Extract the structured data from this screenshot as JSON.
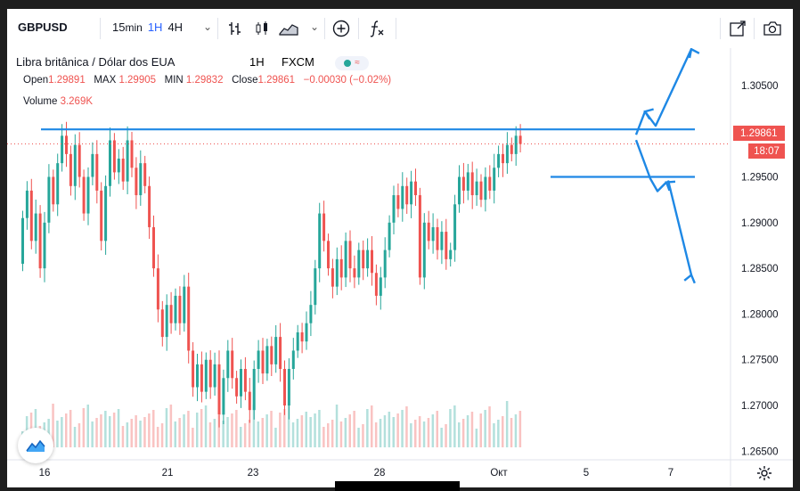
{
  "toolbar": {
    "symbol": "GBPUSD",
    "interval_main": "15",
    "interval_min": "min",
    "interval_selected": "1H",
    "interval_other": "4H",
    "chevron": "⌄"
  },
  "legend": {
    "title": "Libra britânica / Dólar dos EUA",
    "timeframe": "1H",
    "source": "FXCM",
    "open_label": "Open",
    "open_value": "1.29891",
    "max_label": "MAX",
    "max_value": "1.29905",
    "min_label": "MIN",
    "min_value": "1.29832",
    "close_label": "Close",
    "close_value": "1.29861",
    "change_value": "−0.00030 (−0.02%)",
    "volume_label": "Volume",
    "volume_value": "3.269K"
  },
  "price_tag": "1.29861",
  "time_tag": "18:07",
  "colors": {
    "up": "#26a69a",
    "down": "#ef5350",
    "annotation": "#1e88e5",
    "accent": "#2962ff"
  },
  "chart_data": {
    "type": "candlestick",
    "y_ticks": [
      "1.30500",
      "1.30000",
      "1.29500",
      "1.29000",
      "1.28500",
      "1.28000",
      "1.27500",
      "1.27000",
      "1.26500"
    ],
    "x_ticks": [
      "16",
      "21",
      "23",
      "28",
      "Окт",
      "5",
      "7"
    ],
    "ylim": [
      1.2625,
      1.3085
    ],
    "last_price": 1.29861,
    "candles": [
      [
        1.2855,
        1.2905
      ],
      [
        1.2905,
        1.2935
      ],
      [
        1.2935,
        1.288
      ],
      [
        1.288,
        1.291
      ],
      [
        1.291,
        1.285
      ],
      [
        1.285,
        1.29
      ],
      [
        1.29,
        1.295
      ],
      [
        1.295,
        1.292
      ],
      [
        1.292,
        1.2965
      ],
      [
        1.2965,
        1.2995
      ],
      [
        1.2995,
        1.2975
      ],
      [
        1.2975,
        1.294
      ],
      [
        1.294,
        1.2985
      ],
      [
        1.2985,
        1.295
      ],
      [
        1.295,
        1.291
      ],
      [
        1.291,
        1.295
      ],
      [
        1.295,
        1.2975
      ],
      [
        1.2975,
        1.2935
      ],
      [
        1.2935,
        1.288
      ],
      [
        1.288,
        1.294
      ],
      [
        1.294,
        1.299
      ],
      [
        1.299,
        1.2955
      ],
      [
        1.2955,
        1.297
      ],
      [
        1.297,
        1.2945
      ],
      [
        1.2945,
        1.299
      ],
      [
        1.299,
        1.296
      ],
      [
        1.296,
        1.293
      ],
      [
        1.293,
        1.2965
      ],
      [
        1.2965,
        1.294
      ],
      [
        1.294,
        1.2895
      ],
      [
        1.2895,
        1.285
      ],
      [
        1.285,
        1.2805
      ],
      [
        1.2805,
        1.2775
      ],
      [
        1.2775,
        1.281
      ],
      [
        1.281,
        1.279
      ],
      [
        1.279,
        1.282
      ],
      [
        1.282,
        1.279
      ],
      [
        1.279,
        1.283
      ],
      [
        1.283,
        1.276
      ],
      [
        1.276,
        1.272
      ],
      [
        1.272,
        1.2745
      ],
      [
        1.2745,
        1.2715
      ],
      [
        1.2715,
        1.275
      ],
      [
        1.275,
        1.272
      ],
      [
        1.272,
        1.2745
      ],
      [
        1.2745,
        1.269
      ],
      [
        1.269,
        1.273
      ],
      [
        1.273,
        1.276
      ],
      [
        1.276,
        1.273
      ],
      [
        1.273,
        1.271
      ],
      [
        1.271,
        1.274
      ],
      [
        1.274,
        1.2715
      ],
      [
        1.2715,
        1.2695
      ],
      [
        1.2695,
        1.274
      ],
      [
        1.274,
        1.276
      ],
      [
        1.276,
        1.2735
      ],
      [
        1.2735,
        1.2765
      ],
      [
        1.2765,
        1.2745
      ],
      [
        1.2745,
        1.2775
      ],
      [
        1.2775,
        1.274
      ],
      [
        1.274,
        1.27
      ],
      [
        1.27,
        1.274
      ],
      [
        1.274,
        1.276
      ],
      [
        1.276,
        1.278
      ],
      [
        1.278,
        1.277
      ],
      [
        1.277,
        1.279
      ],
      [
        1.279,
        1.281
      ],
      [
        1.281,
        1.285
      ],
      [
        1.285,
        1.291
      ],
      [
        1.291,
        1.288
      ],
      [
        1.288,
        1.285
      ],
      [
        1.285,
        1.283
      ],
      [
        1.283,
        1.286
      ],
      [
        1.286,
        1.284
      ],
      [
        1.284,
        1.288
      ],
      [
        1.288,
        1.285
      ],
      [
        1.285,
        1.284
      ],
      [
        1.284,
        1.287
      ],
      [
        1.287,
        1.285
      ],
      [
        1.285,
        1.287
      ],
      [
        1.287,
        1.2845
      ],
      [
        1.2845,
        1.282
      ],
      [
        1.282,
        1.284
      ],
      [
        1.284,
        1.287
      ],
      [
        1.287,
        1.29
      ],
      [
        1.29,
        1.293
      ],
      [
        1.293,
        1.2915
      ],
      [
        1.2915,
        1.294
      ],
      [
        1.294,
        1.292
      ],
      [
        1.292,
        1.2945
      ],
      [
        1.2945,
        1.293
      ],
      [
        1.293,
        1.284
      ],
      [
        1.284,
        1.29
      ],
      [
        1.29,
        1.288
      ],
      [
        1.288,
        1.2895
      ],
      [
        1.2895,
        1.287
      ],
      [
        1.287,
        1.289
      ],
      [
        1.289,
        1.286
      ],
      [
        1.286,
        1.287
      ],
      [
        1.287,
        1.292
      ],
      [
        1.292,
        1.295
      ],
      [
        1.295,
        1.2935
      ],
      [
        1.2935,
        1.2955
      ],
      [
        1.2955,
        1.293
      ],
      [
        1.293,
        1.2945
      ],
      [
        1.2945,
        1.2925
      ],
      [
        1.2925,
        1.295
      ],
      [
        1.295,
        1.2935
      ],
      [
        1.2935,
        1.296
      ],
      [
        1.296,
        1.2975
      ],
      [
        1.2975,
        1.2965
      ],
      [
        1.2965,
        1.2985
      ],
      [
        1.2985,
        1.2975
      ],
      [
        1.2975,
        1.2995
      ],
      [
        1.2995,
        1.2986
      ]
    ],
    "annotations": {
      "resistance_level": 1.3002,
      "support_level": 1.295
    }
  }
}
